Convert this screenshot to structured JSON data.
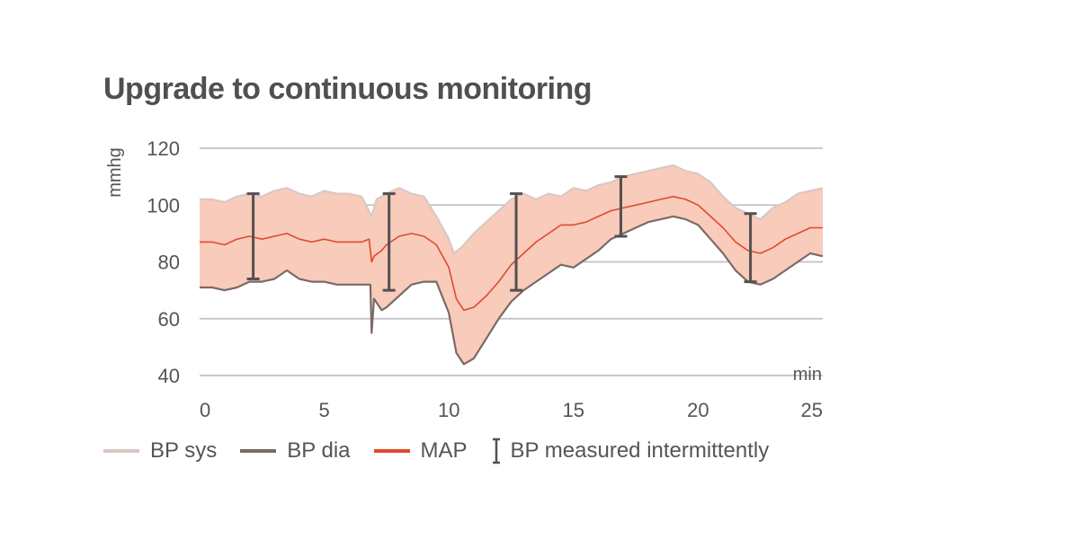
{
  "chart_data": {
    "type": "area",
    "title": "Upgrade to continuous monitoring",
    "ylabel": "mmhg",
    "xlabel": "min",
    "xlim": [
      0,
      25
    ],
    "ylim": [
      40,
      120
    ],
    "x_ticks": [
      "0",
      "5",
      "10",
      "15",
      "20",
      "25"
    ],
    "y_ticks": [
      "120",
      "100",
      "80",
      "60",
      "40"
    ],
    "grid": true,
    "legend_position": "bottom",
    "colors": {
      "band": "#f8cbbb",
      "sys_line": "#d9c8c4",
      "dia_line": "#7a6a66",
      "map_line": "#e04a30",
      "error_bar": "#555050",
      "grid": "#c2c2c2"
    },
    "series": [
      {
        "name": "BP sys",
        "x": [
          0,
          0.5,
          1,
          1.5,
          2,
          2.5,
          3,
          3.5,
          4,
          4.5,
          5,
          5.5,
          6,
          6.5,
          6.9,
          7.1,
          7.5,
          8,
          8.5,
          9,
          9.5,
          10,
          10.2,
          10.5,
          11,
          11.5,
          12,
          12.5,
          13,
          13.5,
          14,
          14.5,
          15,
          15.5,
          16,
          16.5,
          17,
          17.5,
          18,
          18.5,
          19,
          19.5,
          20,
          20.5,
          21,
          21.5,
          22,
          22.5,
          23,
          23.5,
          24,
          24.5,
          25
        ],
        "values": [
          102,
          102,
          101,
          103,
          104,
          103,
          105,
          106,
          104,
          103,
          105,
          104,
          104,
          103,
          96,
          102,
          104,
          106,
          104,
          103,
          96,
          88,
          83,
          85,
          90,
          94,
          98,
          102,
          104,
          102,
          104,
          103,
          106,
          105,
          107,
          108,
          110,
          111,
          112,
          113,
          114,
          112,
          111,
          108,
          103,
          99,
          97,
          95,
          99,
          101,
          104,
          105,
          106
        ]
      },
      {
        "name": "BP dia",
        "x": [
          0,
          0.5,
          1,
          1.5,
          2,
          2.5,
          3,
          3.5,
          4,
          4.5,
          5,
          5.5,
          6,
          6.5,
          6.85,
          6.9,
          7.0,
          7.3,
          7.5,
          8,
          8.5,
          9,
          9.5,
          10,
          10.3,
          10.6,
          11,
          11.5,
          12,
          12.5,
          13,
          13.5,
          14,
          14.5,
          15,
          15.5,
          16,
          16.5,
          17,
          17.5,
          18,
          18.5,
          19,
          19.5,
          20,
          20.5,
          21,
          21.5,
          22,
          22.5,
          23,
          23.5,
          24,
          24.5,
          25
        ],
        "values": [
          71,
          71,
          70,
          71,
          73,
          73,
          74,
          77,
          74,
          73,
          73,
          72,
          72,
          72,
          72,
          55,
          67,
          63,
          64,
          68,
          72,
          73,
          73,
          62,
          48,
          44,
          46,
          53,
          60,
          66,
          70,
          73,
          76,
          79,
          78,
          81,
          84,
          88,
          90,
          92,
          94,
          95,
          96,
          95,
          93,
          88,
          83,
          77,
          73,
          72,
          74,
          77,
          80,
          83,
          82
        ]
      },
      {
        "name": "MAP",
        "x": [
          0,
          0.5,
          1,
          1.5,
          2,
          2.5,
          3,
          3.5,
          4,
          4.5,
          5,
          5.5,
          6,
          6.5,
          6.8,
          6.9,
          7.0,
          7.3,
          7.5,
          8,
          8.5,
          9,
          9.5,
          10,
          10.3,
          10.6,
          11,
          11.5,
          12,
          12.5,
          13,
          13.5,
          14,
          14.5,
          15,
          15.5,
          16,
          16.5,
          17,
          17.5,
          18,
          18.5,
          19,
          19.5,
          20,
          20.5,
          21,
          21.5,
          22,
          22.5,
          23,
          23.5,
          24,
          24.5,
          25
        ],
        "values": [
          87,
          87,
          86,
          88,
          89,
          88,
          89,
          90,
          88,
          87,
          88,
          87,
          87,
          87,
          88,
          80,
          82,
          84,
          86,
          89,
          90,
          89,
          86,
          78,
          67,
          63,
          64,
          68,
          73,
          79,
          83,
          87,
          90,
          93,
          93,
          94,
          96,
          98,
          99,
          100,
          101,
          102,
          103,
          102,
          100,
          96,
          92,
          87,
          84,
          83,
          85,
          88,
          90,
          92,
          92
        ]
      }
    ],
    "intermittent_measurements": {
      "name": "BP measured intermittently",
      "points": [
        {
          "x": 2.15,
          "low": 74,
          "high": 104
        },
        {
          "x": 7.6,
          "low": 70,
          "high": 104
        },
        {
          "x": 12.7,
          "low": 70,
          "high": 104
        },
        {
          "x": 16.9,
          "low": 89,
          "high": 110
        },
        {
          "x": 22.1,
          "low": 73,
          "high": 97
        }
      ]
    }
  }
}
